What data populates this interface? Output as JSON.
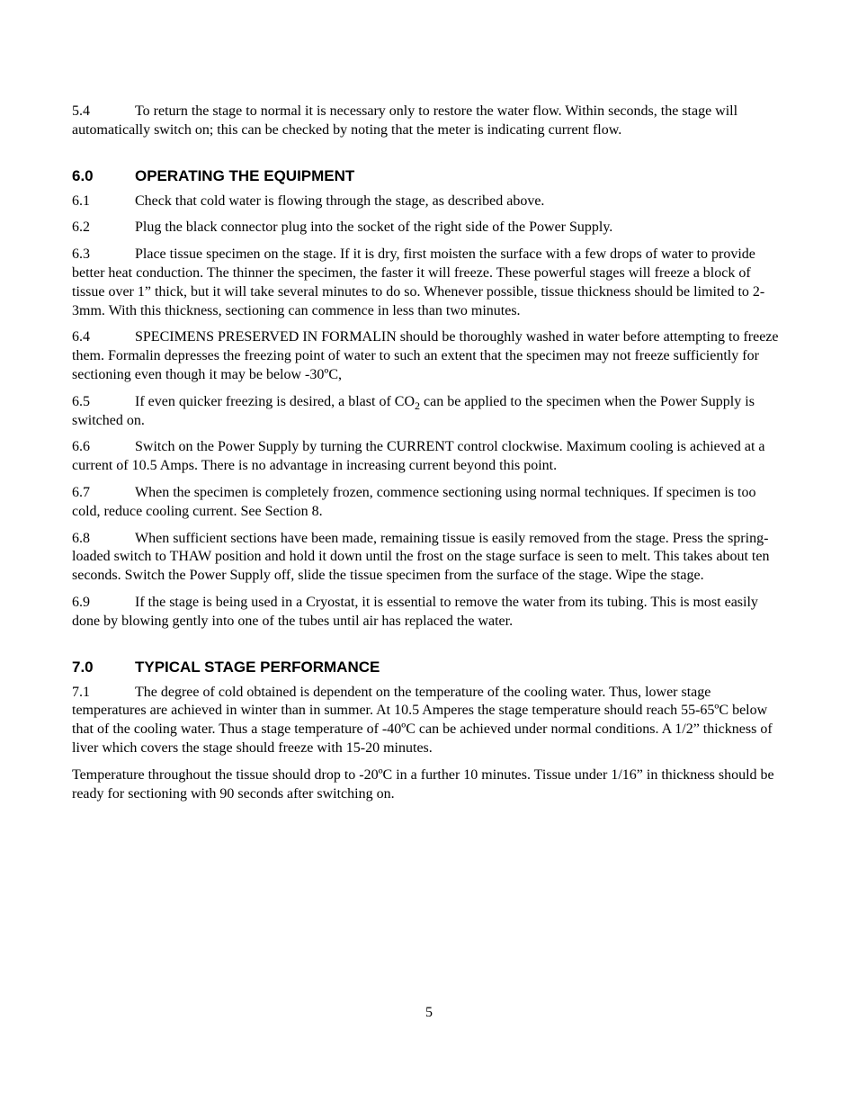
{
  "page_number": "5",
  "colors": {
    "background": "#ffffff",
    "text": "#000000"
  },
  "typography": {
    "body_font": "Times New Roman",
    "body_fontsize_pt": 12,
    "heading_font": "Arial",
    "heading_fontsize_pt": 13,
    "heading_weight": "bold"
  },
  "sections": {
    "s5": {
      "p4": {
        "num": "5.4",
        "text": "To return the stage to normal it is necessary only to restore the water flow. Within seconds, the stage will automatically switch on; this can be checked by noting that the meter is indicating current flow."
      }
    },
    "s6": {
      "heading_num": "6.0",
      "heading_text": "OPERATING THE EQUIPMENT",
      "p1": {
        "num": "6.1",
        "text": "Check that cold water is flowing through the stage, as described above."
      },
      "p2": {
        "num": "6.2",
        "text": "Plug the black connector plug into the socket of the right side of the Power Supply."
      },
      "p3": {
        "num": "6.3",
        "text": "Place tissue specimen on the stage. If it is dry, first moisten the surface with a few drops of water to provide better heat conduction. The thinner the specimen, the faster it will freeze. These powerful stages will freeze a block of tissue over 1” thick, but it will take several minutes to do so. Whenever possible, tissue thickness should be limited to 2-3mm. With this thickness, sectioning can commence in less than two minutes."
      },
      "p4": {
        "num": "6.4",
        "text": "SPECIMENS PRESERVED IN FORMALIN should be thoroughly washed in water before attempting to freeze them. Formalin depresses the freezing point of water to such an extent that the specimen may not freeze sufficiently for sectioning even though it may be below -30ºC,"
      },
      "p5": {
        "num": "6.5",
        "pre": "If even quicker freezing is desired, a blast of CO",
        "sub": "2",
        "post": " can be applied to the specimen when the Power Supply is switched on."
      },
      "p6": {
        "num": "6.6",
        "text": "Switch on the Power Supply by turning the CURRENT control clockwise. Maximum cooling is achieved at a current of 10.5 Amps. There is no advantage in increasing current beyond this point."
      },
      "p7": {
        "num": "6.7",
        "text": "When the specimen is completely frozen, commence sectioning using normal techniques. If specimen is too cold, reduce cooling current. See Section 8."
      },
      "p8": {
        "num": "6.8",
        "text": "When sufficient sections have been made, remaining tissue is easily removed from the stage. Press the spring-loaded switch to THAW position and hold it down until the frost on the stage surface is seen to melt. This takes about ten seconds. Switch the Power Supply off, slide the tissue specimen from the surface of the stage. Wipe the stage."
      },
      "p9": {
        "num": "6.9",
        "text": "If the stage is being used in a Cryostat, it is essential to remove the water from its tubing. This is most easily done by blowing gently into one of the tubes until air has replaced the water."
      }
    },
    "s7": {
      "heading_num": "7.0",
      "heading_text": "TYPICAL STAGE PERFORMANCE",
      "p1": {
        "num": "7.1",
        "text": "The degree of cold obtained is dependent on the temperature of the cooling water. Thus, lower stage temperatures are achieved in winter than in summer. At 10.5 Amperes the stage temperature should reach 55-65ºC below that of the cooling water. Thus a stage temperature of -40ºC can be achieved under normal conditions. A 1/2” thickness of liver which covers the stage should freeze with 15-20 minutes."
      },
      "p2": {
        "text": "Temperature throughout the tissue should drop to -20ºC in a further 10 minutes. Tissue under 1/16” in thickness should be ready for sectioning with 90 seconds after switching on."
      }
    }
  }
}
